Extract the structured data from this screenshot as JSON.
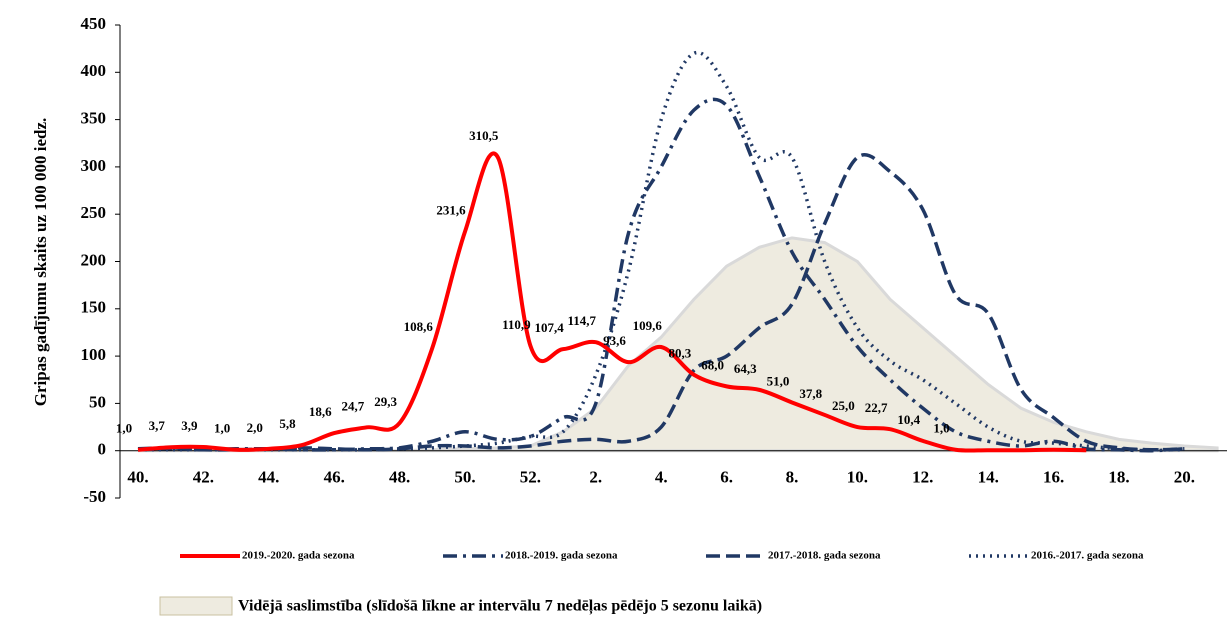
{
  "chart_data": {
    "type": "line",
    "y_label": "Gripas gadījumu skaits uz 100 000 iedz.",
    "categories": [
      "40.",
      null,
      "42.",
      null,
      "44.",
      null,
      "46.",
      null,
      "48.",
      null,
      "50.",
      null,
      "52.",
      null,
      "2.",
      null,
      "4.",
      null,
      "6.",
      null,
      "8.",
      null,
      "10.",
      null,
      "12.",
      null,
      "14.",
      null,
      "16.",
      null,
      "18.",
      null,
      "20.",
      null
    ],
    "ylim": [
      -50,
      450
    ],
    "yticks": [
      -50,
      0,
      50,
      100,
      150,
      200,
      250,
      300,
      350,
      400,
      450
    ],
    "series": [
      {
        "name": "2019.-2020. gada sezona",
        "color": "#ff0000",
        "line_style": "solid",
        "values": [
          1.0,
          3.7,
          3.9,
          1.0,
          2.0,
          5.8,
          18.6,
          24.7,
          29.3,
          108.6,
          231.6,
          310.5,
          110.9,
          107.4,
          114.7,
          93.6,
          109.6,
          80.3,
          68.0,
          64.3,
          51.0,
          37.8,
          25.0,
          22.7,
          10.4,
          1.0,
          0.5,
          0.5,
          1,
          0.5,
          null,
          null,
          null,
          null
        ],
        "value_labels": [
          "1,0",
          "3,7",
          "3,9",
          "1,0",
          "2,0",
          "5,8",
          "18,6",
          "24,7",
          "29,3",
          "108,6",
          "231,6",
          "310,5",
          "110,9",
          "107,4",
          "114,7",
          "93,6",
          "109,6",
          "80,3",
          "68,0",
          "64,3",
          "51,0",
          "37,8",
          "25,0",
          "22,7",
          "10,4",
          "1,0",
          null,
          null,
          null,
          null,
          null,
          null,
          null,
          null
        ]
      },
      {
        "name": "2018.-2019. gada sezona",
        "color": "#203864",
        "line_style": "dash-dot",
        "values": [
          2,
          3,
          1,
          2,
          2,
          1,
          1,
          2,
          3,
          10,
          20,
          12,
          15,
          35,
          50,
          230,
          300,
          360,
          365,
          290,
          210,
          160,
          110,
          75,
          45,
          20,
          10,
          5,
          10,
          2,
          1,
          0,
          2,
          null
        ]
      },
      {
        "name": "2017.-2018. gada sezona",
        "color": "#203864",
        "line_style": "dash",
        "values": [
          1,
          2,
          1,
          1,
          2,
          3,
          2,
          1,
          2,
          5,
          5,
          3,
          5,
          10,
          12,
          10,
          25,
          85,
          100,
          130,
          155,
          240,
          310,
          295,
          255,
          165,
          145,
          65,
          35,
          10,
          3,
          1,
          2,
          null
        ]
      },
      {
        "name": "2016.-2017. gada sezona",
        "color": "#203864",
        "line_style": "dot",
        "values": [
          1,
          1,
          1,
          1,
          1,
          1,
          1,
          1,
          2,
          3,
          5,
          8,
          15,
          20,
          80,
          190,
          350,
          420,
          385,
          310,
          310,
          200,
          130,
          95,
          75,
          50,
          25,
          10,
          8,
          5,
          2,
          1,
          1,
          null
        ]
      }
    ],
    "area": {
      "name": "Vidējā saslimstība (slīdošā līkne ar intervālu 7 nedēļas pēdējo 5 sezonu laikā)",
      "color": "#eeebe0",
      "values": [
        0,
        0,
        0,
        0,
        0,
        0,
        0,
        0,
        0,
        1,
        2,
        3,
        5,
        20,
        45,
        90,
        120,
        160,
        195,
        215,
        225,
        220,
        200,
        160,
        130,
        100,
        70,
        45,
        30,
        20,
        12,
        8,
        5,
        3
      ]
    }
  }
}
